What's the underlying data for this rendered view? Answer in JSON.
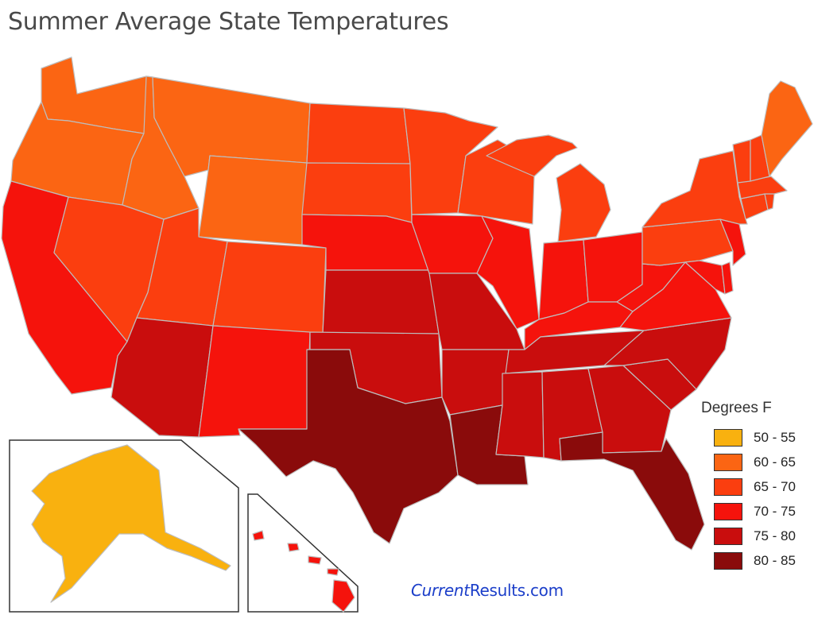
{
  "title": "Summer Average State Temperatures",
  "legend": {
    "title": "Degrees F",
    "bins": [
      {
        "label": "50 - 55",
        "color": "#f9b10f"
      },
      {
        "label": "60 - 65",
        "color": "#fb6513"
      },
      {
        "label": "65 - 70",
        "color": "#fb3e0f"
      },
      {
        "label": "70 - 75",
        "color": "#f5130c"
      },
      {
        "label": "75 - 80",
        "color": "#c90d0d"
      },
      {
        "label": "80 - 85",
        "color": "#8a0b0b"
      }
    ]
  },
  "credit": {
    "part1": "Current",
    "part2": "Results.com"
  },
  "states": {
    "WA": "60 - 65",
    "OR": "60 - 65",
    "ID": "60 - 65",
    "MT": "60 - 65",
    "WY": "60 - 65",
    "ME": "60 - 65",
    "NV": "65 - 70",
    "UT": "65 - 70",
    "CO": "65 - 70",
    "ND": "65 - 70",
    "SD": "65 - 70",
    "MN": "65 - 70",
    "WI": "65 - 70",
    "MI": "65 - 70",
    "PA": "65 - 70",
    "NY": "65 - 70",
    "VT": "65 - 70",
    "NH": "65 - 70",
    "MA": "65 - 70",
    "CT": "65 - 70",
    "RI": "65 - 70",
    "CA": "70 - 75",
    "NM": "70 - 75",
    "NE": "70 - 75",
    "IA": "70 - 75",
    "IL": "70 - 75",
    "IN": "70 - 75",
    "OH": "70 - 75",
    "KY": "70 - 75",
    "WV": "70 - 75",
    "VA": "70 - 75",
    "MD": "70 - 75",
    "DE": "70 - 75",
    "NJ": "70 - 75",
    "HI": "70 - 75",
    "AZ": "75 - 80",
    "KS": "75 - 80",
    "MO": "75 - 80",
    "OK": "75 - 80",
    "AR": "75 - 80",
    "TN": "75 - 80",
    "NC": "75 - 80",
    "SC": "75 - 80",
    "GA": "75 - 80",
    "AL": "75 - 80",
    "MS": "75 - 80",
    "TX": "80 - 85",
    "LA": "80 - 85",
    "FL": "80 - 85",
    "AK": "50 - 55"
  }
}
